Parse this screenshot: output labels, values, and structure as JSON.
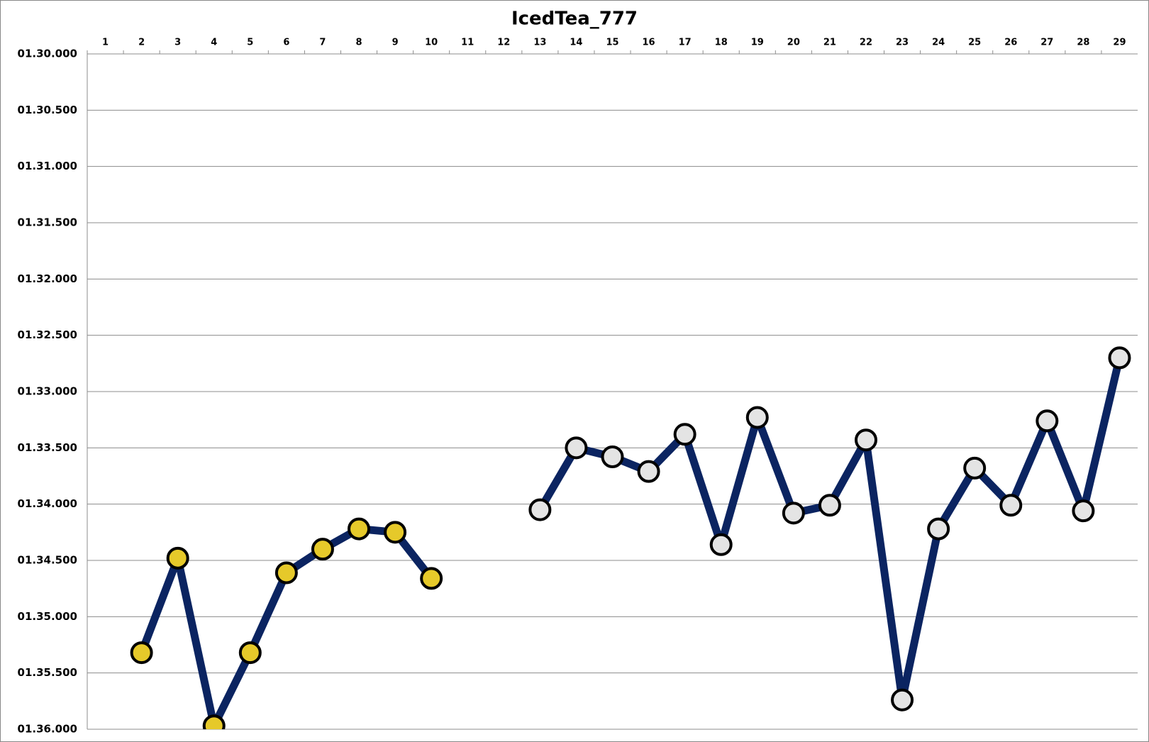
{
  "chart_data": {
    "type": "line",
    "title": "IcedTea_777",
    "categories": [
      "1",
      "2",
      "3",
      "4",
      "5",
      "6",
      "7",
      "8",
      "9",
      "10",
      "11",
      "12",
      "13",
      "14",
      "15",
      "16",
      "17",
      "18",
      "19",
      "20",
      "21",
      "22",
      "23",
      "24",
      "25",
      "26",
      "27",
      "28",
      "29"
    ],
    "series": [
      {
        "color": "#0b2461",
        "marker_color": "#e6c92a",
        "values": [
          null,
          95.32,
          94.48,
          95.97,
          95.32,
          94.61,
          94.4,
          94.22,
          94.25,
          94.66,
          null,
          null,
          null,
          null,
          null,
          null,
          null,
          null,
          null,
          null,
          null,
          null,
          null,
          null,
          null,
          null,
          null,
          null,
          null
        ]
      },
      {
        "color": "#0b2461",
        "marker_color": "#e4e4e4",
        "values": [
          null,
          null,
          null,
          null,
          null,
          null,
          null,
          null,
          null,
          null,
          null,
          null,
          94.05,
          93.5,
          93.58,
          93.71,
          93.38,
          94.36,
          93.23,
          94.08,
          94.01,
          93.43,
          95.74,
          94.22,
          93.68,
          94.01,
          93.26,
          94.06,
          92.7
        ]
      }
    ],
    "ylim": [
      90,
      96
    ],
    "y_inverted": true,
    "yticks": [
      {
        "value": 90,
        "label": "01.30.000"
      },
      {
        "value": 90.5,
        "label": "01.30.500"
      },
      {
        "value": 91,
        "label": "01.31.000"
      },
      {
        "value": 91.5,
        "label": "01.31.500"
      },
      {
        "value": 92,
        "label": "01.32.000"
      },
      {
        "value": 92.5,
        "label": "01.32.500"
      },
      {
        "value": 93,
        "label": "01.33.000"
      },
      {
        "value": 93.5,
        "label": "01.33.500"
      },
      {
        "value": 94,
        "label": "01.34.000"
      },
      {
        "value": 94.5,
        "label": "01.34.500"
      },
      {
        "value": 95,
        "label": "01.35.000"
      },
      {
        "value": 95.5,
        "label": "01.35.500"
      },
      {
        "value": 96,
        "label": "01.36.000"
      }
    ],
    "grid": true
  }
}
